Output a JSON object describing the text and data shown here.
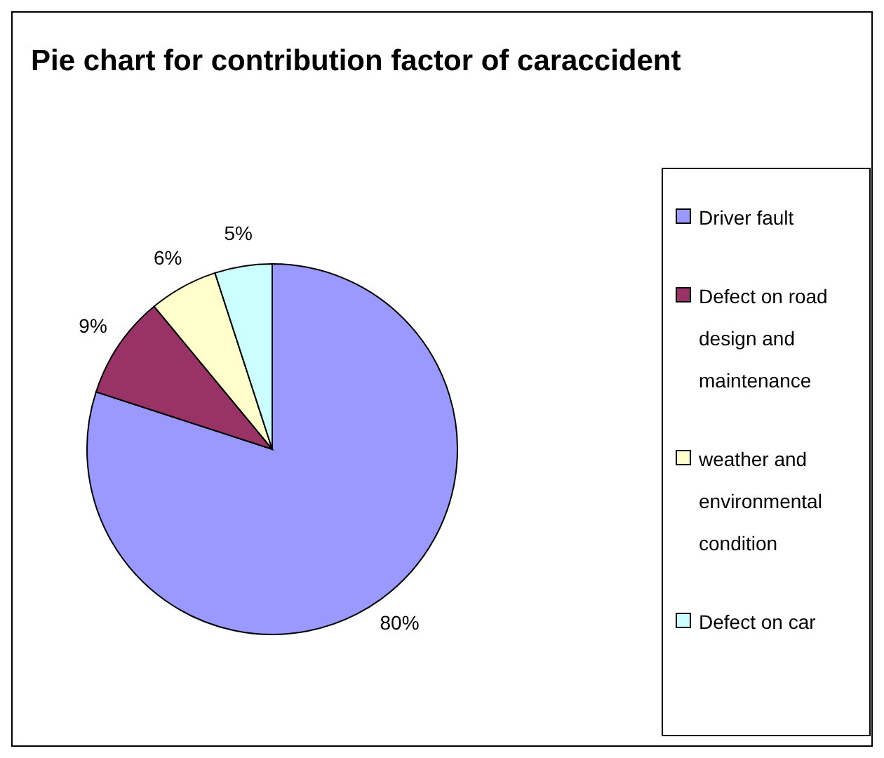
{
  "chart_data": {
    "type": "pie",
    "title": "Pie chart for contribution factor of caraccident",
    "categories": [
      "Driver fault",
      "Defect on road design and maintenance",
      "weather and environmental condition",
      "Defect on car"
    ],
    "values": [
      80,
      9,
      6,
      5
    ],
    "colors": [
      "#9999ff",
      "#993366",
      "#ffffcc",
      "#ccffff"
    ],
    "value_labels": [
      "80%",
      "9%",
      "6%",
      "5%"
    ],
    "legend": "right"
  }
}
